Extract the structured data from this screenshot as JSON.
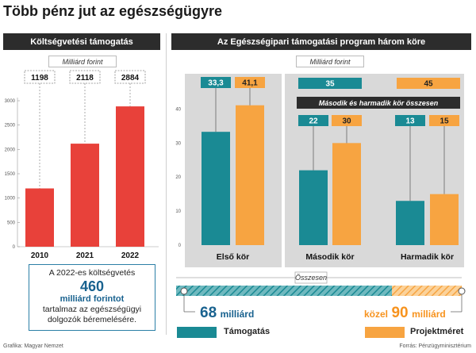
{
  "title": "Több pénz jut az egészségügyre",
  "left_panel": {
    "header": "Költségvetési támogatás",
    "unit": "Milliárd forint"
  },
  "right_panel": {
    "header": "Az Egészségipari támogatási program három köre",
    "unit": "Milliárd forint",
    "second_third_label": "Második és harmadik kör összesen",
    "total_label": "Összesen"
  },
  "infobox": {
    "line1": "A 2022-es költségvetés",
    "amount": "460",
    "unit": "milliárd forintot",
    "line3": "tartalmaz az egészségügyi",
    "line4": "dolgozók béremelésére."
  },
  "totals": {
    "left_number": "68",
    "left_unit": "milliárd",
    "right_prefix": "közel",
    "right_number": "90",
    "right_unit": "milliárd"
  },
  "legend": {
    "teal_label": "Támogatás",
    "orange_label": "Projektméret"
  },
  "footer": {
    "left": "Grafika: Magyar Nemzet",
    "right": "Forrás: Pénzügyminisztérium"
  },
  "colors": {
    "red": "#e8413a",
    "teal": "#1a8a94",
    "orange": "#f7a441",
    "gray_bg": "#d9d9d9",
    "dark": "#2c2c2c"
  },
  "chart_data": [
    {
      "type": "bar",
      "categories": [
        "2010",
        "2021",
        "2022"
      ],
      "values": [
        1198,
        2118,
        2884
      ],
      "labels": [
        "1198",
        "2118",
        "2884"
      ],
      "ylim": [
        0,
        3000
      ],
      "yticks": [
        0,
        500,
        1000,
        1500,
        2000,
        2500,
        3000
      ],
      "grid": false
    },
    {
      "type": "bar",
      "categories": [
        "Első kör",
        "Második kör",
        "Harmadik kör"
      ],
      "series": [
        {
          "values": [
            33.3,
            22,
            13
          ],
          "labels": [
            "33,3",
            "22",
            "13"
          ]
        },
        {
          "values": [
            41.1,
            30,
            15
          ],
          "labels": [
            "41,1",
            "30",
            "15"
          ]
        }
      ],
      "combined": {
        "label": "Második és harmadik kör összesen",
        "values": [
          "35",
          "45"
        ]
      },
      "ylim": [
        0,
        45
      ],
      "yticks": [
        0,
        10,
        20,
        30,
        40
      ],
      "grid": false
    }
  ]
}
